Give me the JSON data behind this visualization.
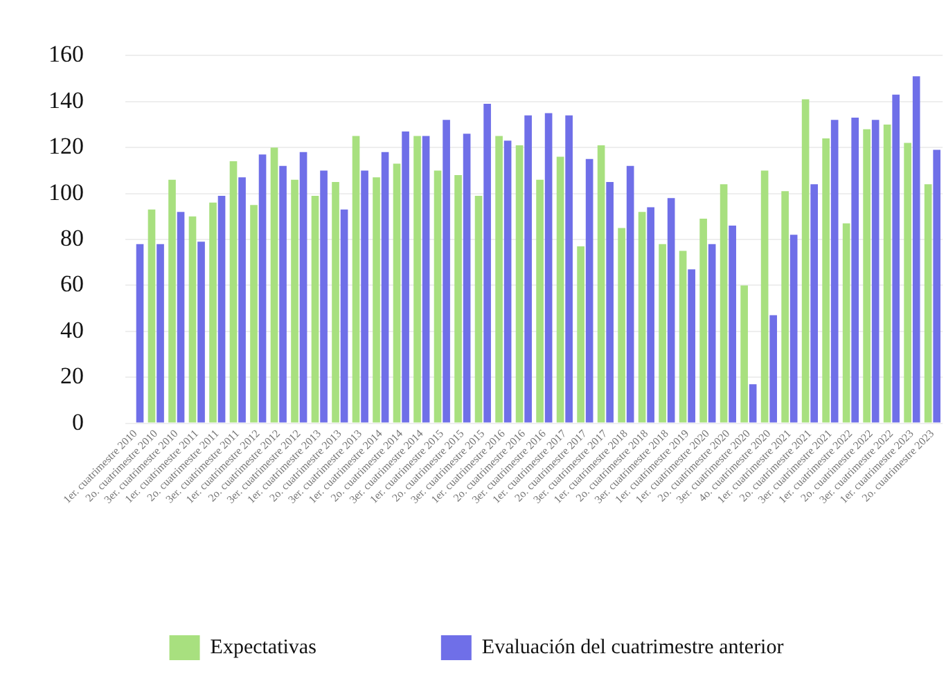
{
  "chart_data": {
    "type": "bar",
    "categories": [
      "1er. cuatrimestre 2010",
      "2o. cuatrimestre 2010",
      "3er. cuatrimestre 2010",
      "1er. cuatrimestre 2011",
      "2o. cuatrimestre 2011",
      "3er. cuatrimestre 2011",
      "1er. cuatrimestre 2012",
      "2o. cuatrimestre 2012",
      "3er. cuatrimestre 2012",
      "1er. cuatrimestre 2013",
      "2o. cuatrimestre 2013",
      "3er. cuatrimestre 2013",
      "1er. cuatrimestre 2014",
      "2o. cuatrimestre 2014",
      "3er. cuatrimestre 2014",
      "1er. cuatrimestre 2015",
      "2o. cuatrimestre 2015",
      "3er. cuatrimestre 2015",
      "1er. cuatrimestre 2016",
      "2o. cuatrimestre 2016",
      "3er. cuatrimestre 2016",
      "1er. cuatrimestre 2017",
      "2o. cuatrimestre 2017",
      "3er. cuatrimestre 2017",
      "1er. cuatrimestre 2018",
      "2o. cuatrimestre 2018",
      "3er. cuatrimestre 2018",
      "1er. cuatrimestre 2019",
      "1er. cuatrimestre 2020",
      "2o. cuatrimestre 2020",
      "3er. cuatrimestre 2020",
      "4o. cuatrimestre 2020",
      "1er. cuatrimestre 2021",
      "2o. cuatrimestre 2021",
      "3er. cuatrimestre 2021",
      "1er. cuatrimestre 2022",
      "2o. cuatrimestre 2022",
      "3er. cuatrimestre 2022",
      "1er. cuatrimestre 2023",
      "2o. cuatrimestre 2023"
    ],
    "series": [
      {
        "name": "Expectativas",
        "color": "#a8e07f",
        "values": [
          null,
          93,
          106,
          90,
          96,
          114,
          95,
          120,
          106,
          99,
          105,
          125,
          107,
          113,
          125,
          110,
          108,
          99,
          125,
          121,
          106,
          116,
          77,
          121,
          85,
          92,
          78,
          75,
          89,
          104,
          60,
          110,
          101,
          141,
          124,
          87,
          128,
          130,
          122,
          104
        ]
      },
      {
        "name": "Evaluación del cuatrimestre anterior",
        "color": "#6f6fe8",
        "values": [
          78,
          78,
          92,
          79,
          99,
          107,
          117,
          112,
          118,
          110,
          93,
          110,
          118,
          127,
          125,
          132,
          126,
          139,
          123,
          134,
          135,
          134,
          115,
          105,
          112,
          94,
          98,
          67,
          78,
          86,
          17,
          47,
          82,
          104,
          132,
          133,
          132,
          143,
          151,
          119
        ]
      }
    ],
    "ylim": [
      0,
      160
    ],
    "yticks": [
      0,
      20,
      40,
      60,
      80,
      100,
      120,
      140,
      160
    ],
    "grid": "y",
    "legend": "bottom"
  }
}
